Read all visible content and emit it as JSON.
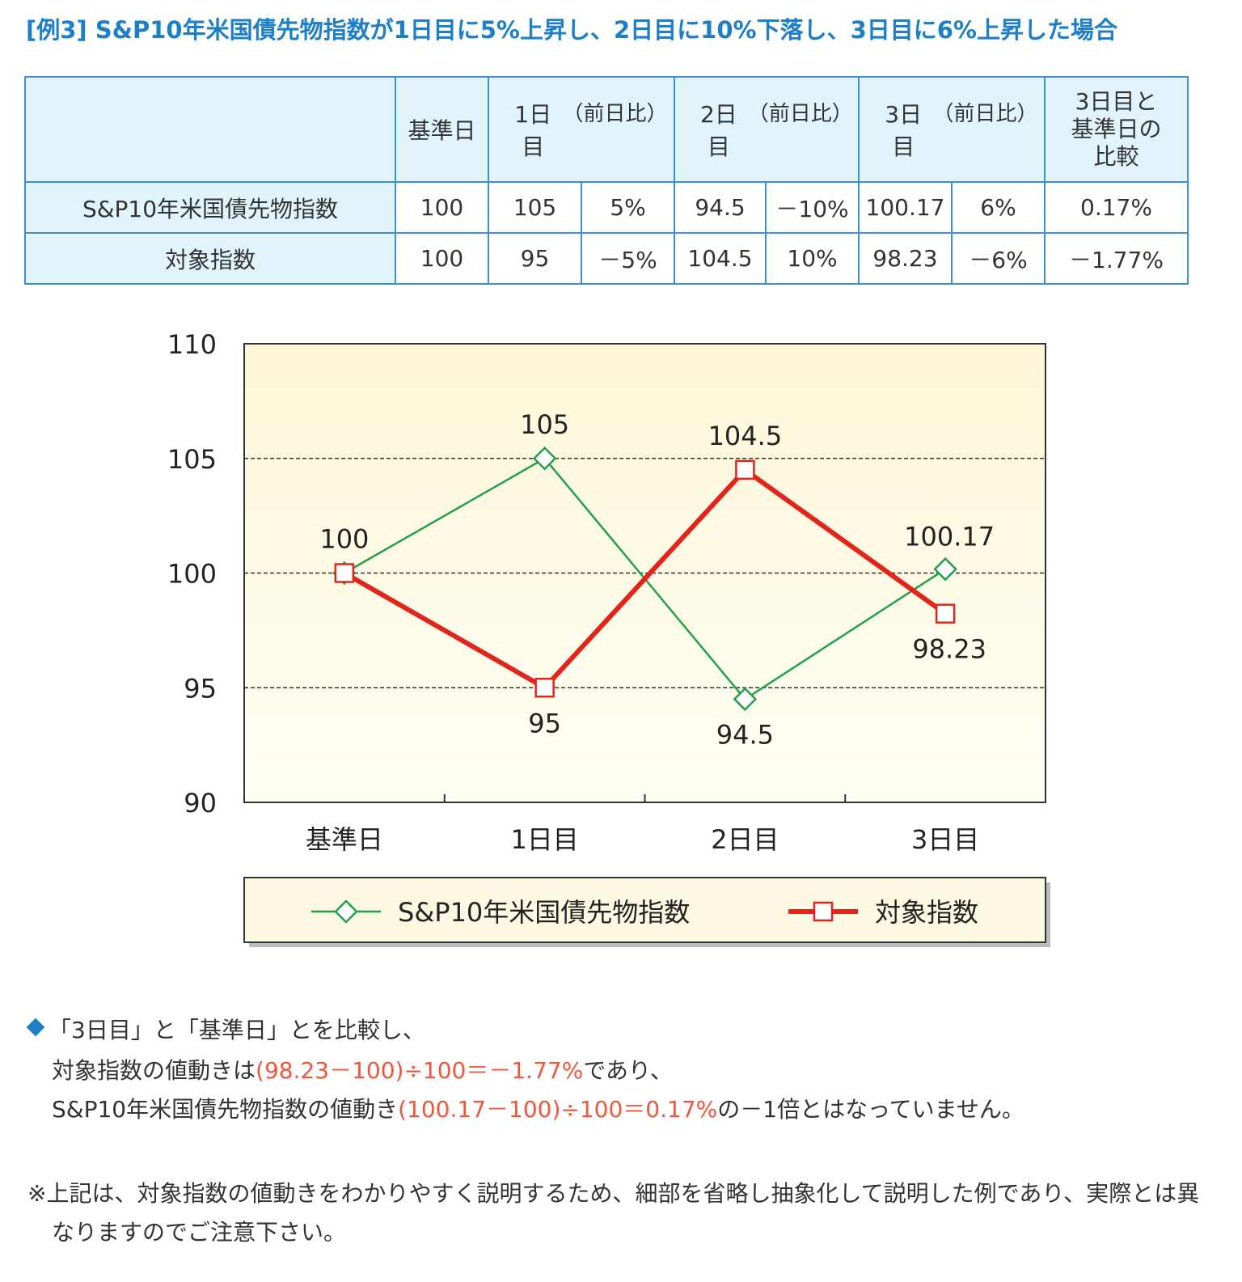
{
  "header": {
    "title": "[例3] S&P10年米国債先物指数が1日目に5%上昇し、2日目に10%下落し、3日目に6%上昇した場合"
  },
  "table": {
    "header": {
      "base": "基準日",
      "days": [
        {
          "day": "1日目",
          "change": "（前日比）"
        },
        {
          "day": "2日目",
          "change": "（前日比）"
        },
        {
          "day": "3日目",
          "change": "（前日比）"
        }
      ],
      "compare": [
        "3日目と",
        "基準日の",
        "比較"
      ]
    },
    "rows": [
      {
        "label": "S&P10年米国債先物指数",
        "cells": [
          "100",
          "105",
          "5%",
          "94.5",
          "－10%",
          "100.17",
          "6%",
          "0.17%"
        ]
      },
      {
        "label": "対象指数",
        "cells": [
          "100",
          "95",
          "－5%",
          "104.5",
          "10%",
          "98.23",
          "－6%",
          "－1.77%"
        ]
      }
    ]
  },
  "chart_data": {
    "type": "line",
    "categories": [
      "基準日",
      "1日目",
      "2日目",
      "3日目"
    ],
    "series": [
      {
        "name": "S&P10年米国債先物指数",
        "color": "#22a04a",
        "marker": "diamond",
        "values": [
          100,
          105,
          94.5,
          100.17
        ]
      },
      {
        "name": "対象指数",
        "color": "#e3241b",
        "marker": "square",
        "values": [
          100,
          95,
          104.5,
          98.23
        ]
      }
    ],
    "ylim": [
      90,
      110
    ],
    "yticks": [
      90,
      95,
      100,
      105,
      110
    ],
    "grid": true,
    "legend": "bottom"
  },
  "notes": {
    "summary": [
      [
        "「3日目」と「基準日」とを比較し、"
      ],
      [
        "対象指数の値動きは",
        "(98.23－100)÷100＝－1.77%",
        "であり、"
      ],
      [
        "S&P10年米国債先物指数の値動き",
        "(100.17－100)÷100＝0.17%",
        "の－1倍とはなっていません。"
      ]
    ],
    "footnote": "※上記は、対象指数の値動きをわかりやすく説明するため、細部を省略し抽象化して説明した例であり、実際とは異なりますのでご注意下さい。"
  }
}
